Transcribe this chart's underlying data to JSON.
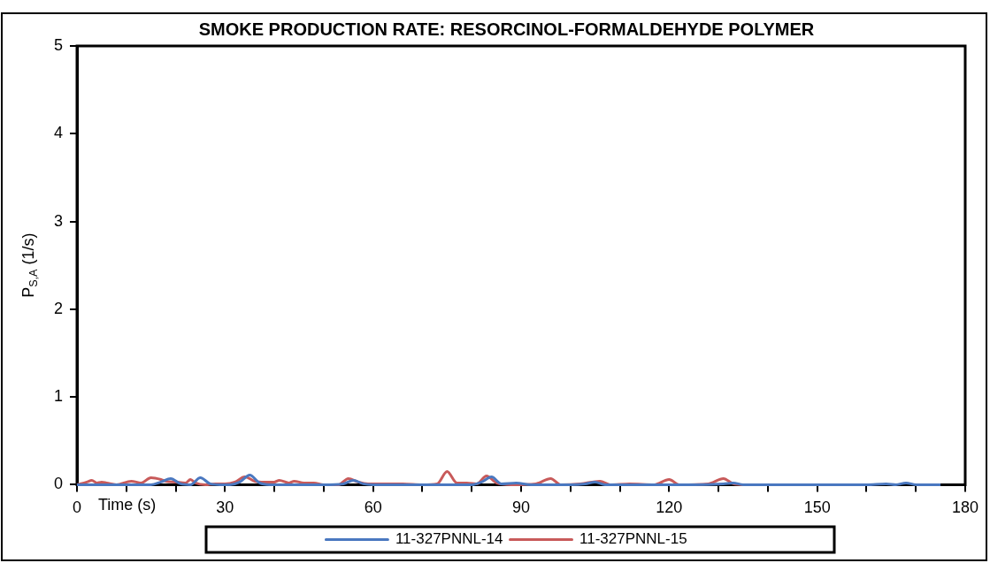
{
  "chart_data": {
    "type": "line",
    "title": "SMOKE PRODUCTION RATE: RESORCINOL-FORMALDEHYDE POLYMER",
    "xlabel": "Time (s)",
    "ylabel": "P$_{S,A}$ (1/s)",
    "xlim": [
      0,
      180
    ],
    "xticks": [
      0,
      {
        "value": 10,
        "label": null
      },
      {
        "value": 20,
        "label": null
      },
      30,
      {
        "value": 40,
        "label": null
      },
      {
        "value": 50,
        "label": null
      },
      60,
      {
        "value": 70,
        "label": null
      },
      {
        "value": 80,
        "label": null
      },
      90,
      {
        "value": 100,
        "label": null
      },
      {
        "value": 110,
        "label": null
      },
      120,
      {
        "value": 130,
        "label": null
      },
      {
        "value": 140,
        "label": null
      },
      150,
      {
        "value": 160,
        "label": null
      },
      {
        "value": 170,
        "label": null
      },
      180
    ],
    "ylim": [
      0,
      5
    ],
    "yticks": [
      0,
      1,
      2,
      3,
      4,
      5
    ],
    "grid": false,
    "legend": "bottom",
    "marker": "none",
    "line_style": "solid",
    "series": [
      {
        "name": "11-327PNNL-14",
        "color": "#4a78c0",
        "x": [
          0,
          10,
          15,
          17,
          19,
          21,
          23,
          25,
          27,
          29,
          31,
          33,
          35,
          37,
          39,
          45,
          50,
          54,
          56,
          58,
          60,
          70,
          80,
          82,
          84,
          86,
          89,
          92,
          100,
          103,
          105,
          107,
          115,
          125,
          131,
          133,
          135,
          150,
          160,
          164,
          166,
          168,
          170,
          175
        ],
        "values": [
          0,
          0,
          0,
          0.03,
          0.07,
          0.01,
          0,
          0.08,
          0.01,
          0,
          0,
          0.03,
          0.11,
          0.02,
          0,
          0,
          0,
          0.01,
          0.05,
          0.01,
          0,
          0,
          0,
          0.03,
          0.09,
          0.01,
          0.02,
          0,
          0,
          0.01,
          0.03,
          0,
          0,
          0,
          0.01,
          0.02,
          0,
          0,
          0,
          0.01,
          0,
          0.02,
          0,
          0
        ]
      },
      {
        "name": "11-327PNNL-15",
        "color": "#c85a5a",
        "x": [
          0,
          2,
          3,
          4,
          5,
          6,
          8,
          11,
          13,
          15,
          17,
          18,
          20,
          22,
          23,
          24,
          26,
          28,
          30,
          32,
          34,
          36,
          38,
          40,
          41,
          43,
          44,
          46,
          48,
          50,
          53,
          55,
          57,
          59,
          62,
          66,
          70,
          73,
          75,
          77,
          79,
          81,
          83,
          85,
          88,
          93,
          96,
          98,
          102,
          106,
          108,
          112,
          117,
          120,
          122,
          128,
          131,
          133,
          135,
          140
        ],
        "values": [
          0,
          0.03,
          0.05,
          0.02,
          0.03,
          0.02,
          0,
          0.04,
          0.02,
          0.08,
          0.06,
          0.04,
          0.03,
          0.02,
          0.06,
          0.02,
          0,
          0.01,
          0.01,
          0.03,
          0.09,
          0.04,
          0.03,
          0.03,
          0.05,
          0.02,
          0.04,
          0.02,
          0.02,
          0,
          0,
          0.07,
          0.03,
          0.01,
          0.01,
          0.01,
          0,
          0.01,
          0.15,
          0.02,
          0.02,
          0.01,
          0.1,
          0.02,
          0,
          0.01,
          0.07,
          0,
          0.01,
          0.04,
          0,
          0.01,
          0,
          0.06,
          0,
          0.01,
          0.07,
          0.01,
          0,
          0
        ]
      }
    ]
  }
}
